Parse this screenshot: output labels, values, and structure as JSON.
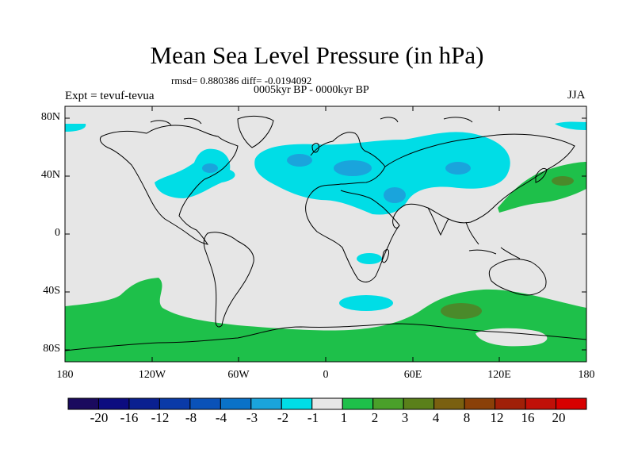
{
  "title": "Mean Sea Level Pressure (in hPa)",
  "stats_text": "rmsd= 0.880386 diff= -0.0194092",
  "period": "0005kyr BP - 0000kyr BP",
  "experiment": "Expt = tevuf-tevua",
  "season": "JJA",
  "y_ticks": [
    "80N",
    "40N",
    "0",
    "40S",
    "80S"
  ],
  "x_ticks": [
    "180",
    "120W",
    "60W",
    "0",
    "60E",
    "120E",
    "180"
  ],
  "colorbar": {
    "labels": [
      "-20",
      "-16",
      "-12",
      "-8",
      "-4",
      "-3",
      "-2",
      "-1",
      "1",
      "2",
      "3",
      "4",
      "8",
      "12",
      "16",
      "20"
    ],
    "colors": [
      "#1a0a5e",
      "#0c0c80",
      "#0a2090",
      "#0a3aa8",
      "#0a52b8",
      "#0a72c8",
      "#1aa4dc",
      "#00dde6",
      "#e6e6e6",
      "#1ec04a",
      "#4aa02a",
      "#5a801a",
      "#7a6010",
      "#8a4008",
      "#a02008",
      "#c01008",
      "#d80000"
    ]
  },
  "colors": {
    "ocean_neutral": "#e6e6e6",
    "negative_light": "#00dde6",
    "negative_medium": "#1aa4dc",
    "positive_light": "#1ec04a",
    "positive_medium": "#4a8a2a"
  }
}
